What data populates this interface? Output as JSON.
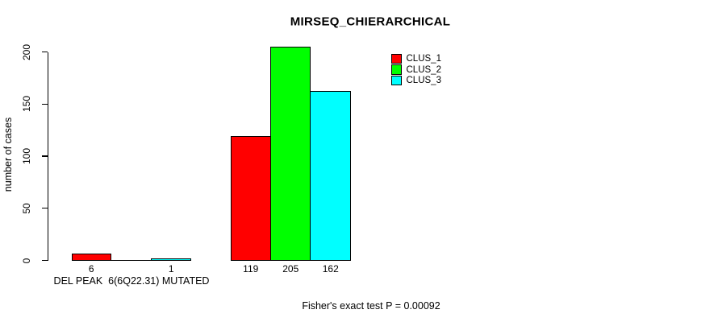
{
  "chart_data": {
    "type": "bar",
    "title": "MIRSEQ_CHIERARCHICAL",
    "ylabel": "number of cases",
    "xlabel": "DEL PEAK  6(6Q22.31) MUTATED",
    "categories": [
      "DEL PEAK  6(6Q22.31) MUTATED",
      ""
    ],
    "series": [
      {
        "name": "CLUS_1",
        "color": "#ff0000",
        "values": [
          6,
          119
        ]
      },
      {
        "name": "CLUS_2",
        "color": "#00ff00",
        "values": [
          0,
          205
        ]
      },
      {
        "name": "CLUS_3",
        "color": "#00ffff",
        "values": [
          1,
          162
        ]
      }
    ],
    "bar_labels": [
      [
        "6",
        "",
        "1"
      ],
      [
        "119",
        "205",
        "162"
      ]
    ],
    "yticks": [
      0,
      50,
      100,
      150,
      200
    ],
    "ylim": [
      0,
      205
    ],
    "grid": "off",
    "legend_position": "top-right",
    "annotation": "Fisher's exact test P = 0.00092"
  },
  "colors": {
    "bar_border": "#000000",
    "axis": "#000000",
    "background": "#ffffff"
  }
}
